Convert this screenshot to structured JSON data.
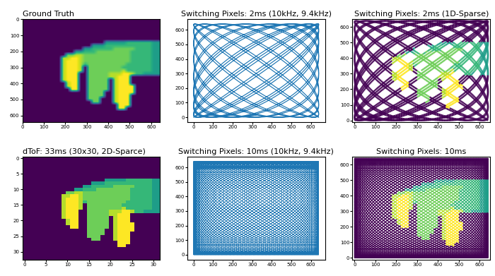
{
  "chart_data": [
    {
      "type": "image",
      "title": "Ground Truth",
      "color": "viridis",
      "xlim": [
        0,
        640
      ],
      "ylim": [
        640,
        0
      ],
      "xticks": [
        0,
        100,
        200,
        300,
        400,
        500,
        600
      ],
      "yticks": [
        0,
        100,
        200,
        300,
        400,
        500,
        600
      ]
    },
    {
      "type": "line",
      "title": "Switching Pixels: 2ms (10kHz, 9.4kHz)",
      "color": "#1f77b4",
      "duration_ms": 2,
      "fx_khz": 10,
      "fy_khz": 9.4,
      "scan_extent": [
        0,
        640
      ],
      "xlim": [
        -32,
        672
      ],
      "ylim": [
        -32,
        672
      ],
      "xticks": [
        0,
        100,
        200,
        300,
        400,
        500,
        600
      ],
      "yticks": [
        0,
        100,
        200,
        300,
        400,
        500,
        600
      ]
    },
    {
      "type": "scan",
      "title": "Switching Pixels: 2ms (1D-Sparse)",
      "color": "viridis",
      "duration_ms": 2,
      "fx_khz": 10,
      "fy_khz": 9.4,
      "scan_extent": [
        0,
        640
      ],
      "xlim": [
        -10,
        650
      ],
      "ylim": [
        -10,
        650
      ],
      "xticks": [
        0,
        100,
        200,
        300,
        400,
        500,
        600
      ],
      "yticks": [
        0,
        100,
        200,
        300,
        400,
        500,
        600
      ]
    },
    {
      "type": "image",
      "title": "dToF: 33ms (30x30, 2D-Sparce)",
      "color": "viridis",
      "xlim": [
        -0.5,
        31.5
      ],
      "ylim": [
        32.5,
        -0.5
      ],
      "xticks": [
        0,
        5,
        10,
        15,
        20,
        25,
        30
      ],
      "yticks": [
        0,
        5,
        10,
        15,
        20,
        25,
        30
      ]
    },
    {
      "type": "line",
      "title": "Switching Pixels: 10ms (10kHz, 9.4kHz)",
      "color": "#1f77b4",
      "duration_ms": 10,
      "fx_khz": 10,
      "fy_khz": 9.4,
      "scan_extent": [
        0,
        640
      ],
      "xlim": [
        -32,
        672
      ],
      "ylim": [
        -32,
        672
      ],
      "xticks": [
        0,
        100,
        200,
        300,
        400,
        500,
        600
      ],
      "yticks": [
        0,
        100,
        200,
        300,
        400,
        500,
        600
      ]
    },
    {
      "type": "scan",
      "title": "Switching Pixels: 10ms",
      "color": "viridis",
      "duration_ms": 10,
      "fx_khz": 10,
      "fy_khz": 9.4,
      "scan_extent": [
        0,
        640
      ],
      "xlim": [
        -10,
        650
      ],
      "ylim": [
        -10,
        650
      ],
      "xticks": [
        0,
        100,
        200,
        300,
        400,
        500,
        600
      ],
      "yticks": [
        0,
        100,
        200,
        300,
        400,
        500,
        600
      ]
    }
  ],
  "color_range": [
    0,
    9
  ],
  "depth_cells": [
    [
      0,
      0,
      0,
      0,
      0,
      0,
      0,
      0,
      0,
      0,
      0,
      0,
      0,
      0,
      0,
      0,
      0,
      0,
      0,
      0,
      0,
      0,
      0,
      0,
      0,
      0,
      0,
      0,
      0,
      0,
      0,
      0
    ],
    [
      0,
      0,
      0,
      0,
      0,
      0,
      0,
      0,
      0,
      0,
      0,
      0,
      0,
      0,
      0,
      0,
      0,
      0,
      0,
      0,
      0,
      0,
      0,
      0,
      0,
      0,
      0,
      0,
      0,
      0,
      0,
      0
    ],
    [
      0,
      0,
      0,
      0,
      0,
      0,
      0,
      0,
      0,
      0,
      0,
      0,
      0,
      0,
      0,
      0,
      0,
      0,
      0,
      0,
      0,
      0,
      0,
      0,
      0,
      0,
      0,
      0,
      0,
      0,
      0,
      0
    ],
    [
      0,
      0,
      0,
      0,
      0,
      0,
      0,
      0,
      0,
      0,
      0,
      0,
      0,
      0,
      0,
      0,
      0,
      0,
      0,
      0,
      0,
      0,
      0,
      0,
      0,
      0,
      0,
      0,
      0,
      0,
      0,
      0
    ],
    [
      0,
      0,
      0,
      0,
      0,
      0,
      0,
      0,
      0,
      0,
      0,
      0,
      0,
      0,
      0,
      0,
      0,
      0,
      0,
      0,
      0,
      0,
      0,
      0,
      0,
      0,
      0,
      0,
      0,
      0,
      0,
      0
    ],
    [
      0,
      0,
      0,
      0,
      0,
      0,
      0,
      0,
      0,
      0,
      0,
      0,
      0,
      0,
      0,
      0,
      0,
      0,
      0,
      0,
      0,
      0,
      0,
      0,
      0,
      0,
      0,
      0,
      0,
      0,
      0,
      0
    ],
    [
      0,
      0,
      0,
      0,
      0,
      0,
      0,
      0,
      0,
      0,
      0,
      0,
      0,
      0,
      0,
      0,
      0,
      0,
      0,
      0,
      0,
      0,
      0,
      0,
      0,
      0,
      0,
      0,
      0,
      0,
      0,
      0
    ],
    [
      0,
      0,
      0,
      0,
      0,
      0,
      0,
      0,
      0,
      0,
      0,
      0,
      0,
      0,
      0,
      0,
      0,
      0,
      0,
      5,
      5,
      5,
      5,
      5,
      6,
      6,
      6,
      6,
      6,
      6,
      5,
      5
    ],
    [
      0,
      0,
      0,
      0,
      0,
      0,
      0,
      0,
      0,
      0,
      0,
      0,
      0,
      0,
      0,
      0,
      5,
      5,
      5,
      6,
      6,
      6,
      6,
      6,
      6,
      6,
      6,
      6,
      6,
      6,
      5,
      5
    ],
    [
      0,
      0,
      0,
      0,
      0,
      0,
      0,
      0,
      0,
      0,
      0,
      0,
      0,
      0,
      5,
      5,
      6,
      6,
      6,
      6,
      6,
      7,
      7,
      7,
      7,
      7,
      6,
      6,
      6,
      6,
      5,
      5
    ],
    [
      0,
      0,
      0,
      0,
      0,
      0,
      0,
      0,
      0,
      0,
      0,
      0,
      5,
      5,
      6,
      6,
      6,
      7,
      7,
      7,
      7,
      7,
      7,
      7,
      7,
      6,
      6,
      6,
      6,
      6,
      5,
      5
    ],
    [
      0,
      0,
      0,
      0,
      0,
      0,
      0,
      0,
      0,
      0,
      7,
      7,
      8,
      8,
      7,
      7,
      7,
      7,
      7,
      7,
      7,
      7,
      7,
      7,
      7,
      6,
      6,
      6,
      6,
      6,
      5,
      5
    ],
    [
      0,
      0,
      0,
      0,
      0,
      0,
      0,
      0,
      0,
      8,
      8,
      9,
      9,
      8,
      7,
      7,
      7,
      7,
      7,
      7,
      7,
      7,
      7,
      7,
      7,
      6,
      6,
      6,
      6,
      6,
      5,
      5
    ],
    [
      0,
      0,
      0,
      0,
      0,
      0,
      0,
      0,
      0,
      8,
      9,
      9,
      9,
      8,
      7,
      7,
      7,
      7,
      7,
      7,
      7,
      7,
      7,
      7,
      7,
      6,
      6,
      6,
      6,
      6,
      5,
      5
    ],
    [
      0,
      0,
      0,
      0,
      0,
      0,
      0,
      0,
      0,
      8,
      9,
      9,
      9,
      8,
      6,
      7,
      7,
      7,
      7,
      7,
      7,
      7,
      7,
      7,
      6,
      6,
      6,
      6,
      6,
      6,
      5,
      5
    ],
    [
      0,
      0,
      0,
      0,
      0,
      0,
      0,
      0,
      0,
      8,
      9,
      9,
      9,
      8,
      0,
      7,
      7,
      7,
      7,
      7,
      7,
      7,
      7,
      6,
      6,
      6,
      6,
      6,
      6,
      6,
      5,
      5
    ],
    [
      0,
      0,
      0,
      0,
      0,
      0,
      0,
      0,
      0,
      8,
      9,
      9,
      9,
      8,
      0,
      7,
      7,
      7,
      7,
      7,
      7,
      7,
      7,
      8,
      6,
      6,
      6,
      6,
      6,
      6,
      5,
      5
    ],
    [
      0,
      0,
      0,
      0,
      0,
      0,
      0,
      0,
      0,
      8,
      9,
      9,
      9,
      0,
      0,
      7,
      7,
      7,
      7,
      7,
      8,
      8,
      8,
      9,
      9,
      8,
      6,
      6,
      5,
      5,
      5,
      5
    ],
    [
      0,
      0,
      0,
      0,
      0,
      0,
      0,
      0,
      0,
      8,
      9,
      9,
      9,
      0,
      0,
      7,
      7,
      7,
      7,
      7,
      8,
      8,
      9,
      9,
      9,
      0,
      0,
      0,
      0,
      0,
      0,
      0
    ],
    [
      0,
      0,
      0,
      0,
      0,
      0,
      0,
      0,
      0,
      8,
      9,
      9,
      9,
      0,
      0,
      7,
      7,
      7,
      7,
      7,
      0,
      8,
      9,
      9,
      9,
      0,
      0,
      0,
      0,
      0,
      0,
      0
    ],
    [
      0,
      0,
      0,
      0,
      0,
      0,
      0,
      0,
      0,
      0,
      8,
      9,
      9,
      0,
      0,
      7,
      7,
      7,
      7,
      7,
      0,
      8,
      9,
      9,
      9,
      0,
      0,
      0,
      0,
      0,
      0,
      0
    ],
    [
      0,
      0,
      0,
      0,
      0,
      0,
      0,
      0,
      0,
      0,
      8,
      9,
      9,
      0,
      0,
      7,
      7,
      7,
      7,
      7,
      0,
      8,
      9,
      9,
      9,
      9,
      0,
      0,
      0,
      0,
      0,
      0
    ],
    [
      0,
      0,
      0,
      0,
      0,
      0,
      0,
      0,
      0,
      0,
      0,
      9,
      9,
      0,
      0,
      7,
      7,
      7,
      7,
      7,
      0,
      8,
      9,
      9,
      9,
      9,
      0,
      0,
      0,
      0,
      0,
      0
    ],
    [
      0,
      0,
      0,
      0,
      0,
      0,
      0,
      0,
      0,
      0,
      0,
      0,
      0,
      0,
      0,
      7,
      7,
      7,
      7,
      0,
      0,
      8,
      9,
      9,
      9,
      9,
      0,
      0,
      0,
      0,
      0,
      0
    ],
    [
      0,
      0,
      0,
      0,
      0,
      0,
      0,
      0,
      0,
      0,
      0,
      0,
      0,
      0,
      0,
      7,
      7,
      7,
      7,
      0,
      0,
      8,
      9,
      9,
      9,
      0,
      0,
      0,
      0,
      0,
      0,
      0
    ],
    [
      0,
      0,
      0,
      0,
      0,
      0,
      0,
      0,
      0,
      0,
      0,
      0,
      0,
      0,
      0,
      7,
      7,
      7,
      0,
      0,
      0,
      8,
      9,
      9,
      9,
      0,
      0,
      0,
      0,
      0,
      0,
      0
    ],
    [
      0,
      0,
      0,
      0,
      0,
      0,
      0,
      0,
      0,
      0,
      0,
      0,
      0,
      0,
      0,
      0,
      7,
      7,
      0,
      0,
      0,
      8,
      9,
      9,
      9,
      0,
      0,
      0,
      0,
      0,
      0,
      0
    ],
    [
      0,
      0,
      0,
      0,
      0,
      0,
      0,
      0,
      0,
      0,
      0,
      0,
      0,
      0,
      0,
      0,
      0,
      0,
      0,
      0,
      0,
      0,
      9,
      9,
      9,
      0,
      0,
      0,
      0,
      0,
      0,
      0
    ],
    [
      0,
      0,
      0,
      0,
      0,
      0,
      0,
      0,
      0,
      0,
      0,
      0,
      0,
      0,
      0,
      0,
      0,
      0,
      0,
      0,
      0,
      0,
      9,
      9,
      0,
      0,
      0,
      0,
      0,
      0,
      0,
      0
    ],
    [
      0,
      0,
      0,
      0,
      0,
      0,
      0,
      0,
      0,
      0,
      0,
      0,
      0,
      0,
      0,
      0,
      0,
      0,
      0,
      0,
      0,
      0,
      0,
      0,
      0,
      0,
      0,
      0,
      0,
      0,
      0,
      0
    ],
    [
      0,
      0,
      0,
      0,
      0,
      0,
      0,
      0,
      0,
      0,
      0,
      0,
      0,
      0,
      0,
      0,
      0,
      0,
      0,
      0,
      0,
      0,
      0,
      0,
      0,
      0,
      0,
      0,
      0,
      0,
      0,
      0
    ],
    [
      0,
      0,
      0,
      0,
      0,
      0,
      0,
      0,
      0,
      0,
      0,
      0,
      0,
      0,
      0,
      0,
      0,
      0,
      0,
      0,
      0,
      0,
      0,
      0,
      0,
      0,
      0,
      0,
      0,
      0,
      0,
      0
    ],
    [
      0,
      0,
      0,
      0,
      0,
      0,
      0,
      0,
      0,
      0,
      0,
      0,
      0,
      0,
      0,
      0,
      0,
      0,
      0,
      0,
      0,
      0,
      0,
      0,
      0,
      0,
      0,
      0,
      0,
      0,
      0,
      0
    ]
  ]
}
